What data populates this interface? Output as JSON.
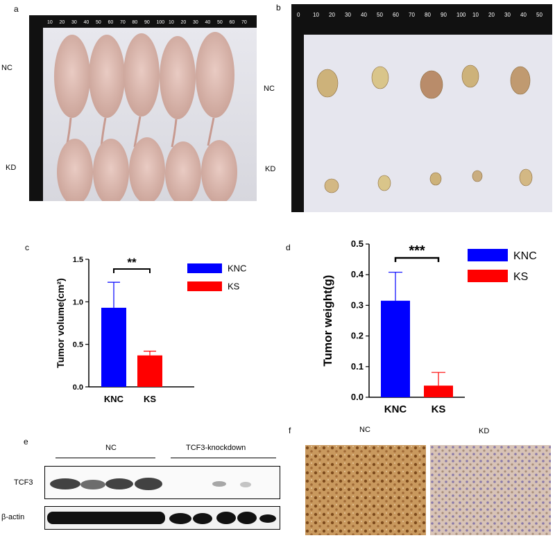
{
  "panels": {
    "a": {
      "letter": "a",
      "row_labels": [
        "NC",
        "KD"
      ]
    },
    "b": {
      "letter": "b",
      "row_labels": [
        "NC",
        "KD"
      ]
    },
    "c": {
      "letter": "c"
    },
    "d": {
      "letter": "d"
    },
    "e": {
      "letter": "e",
      "group_labels": [
        "NC",
        "TCF3-knockdown"
      ],
      "row_labels": [
        "TCF3",
        "β-actin"
      ]
    },
    "f": {
      "letter": "f",
      "col_labels": [
        "NC",
        "KD"
      ]
    }
  },
  "ruler_a": [
    "10",
    "20",
    "30",
    "40",
    "50",
    "60",
    "70",
    "80",
    "90",
    "100",
    "10",
    "20",
    "30",
    "40",
    "50",
    "60",
    "70"
  ],
  "ruler_b": [
    "0",
    "10",
    "20",
    "30",
    "40",
    "50",
    "60",
    "70",
    "80",
    "90",
    "100",
    "10",
    "20",
    "30",
    "40",
    "50"
  ],
  "colors": {
    "knc": "#0000ff",
    "ks": "#ff0000"
  },
  "chart_data": [
    {
      "type": "bar",
      "categories": [
        "KNC",
        "KS"
      ],
      "values": [
        0.93,
        0.37
      ],
      "errors": [
        0.3,
        0.05
      ],
      "ylabel": "Tumor volume(cm²)",
      "ylim": [
        0,
        1.5
      ],
      "yticks": [
        "0.0",
        "0.5",
        "1.0",
        "1.5"
      ],
      "significance": "**",
      "legend": [
        "KNC",
        "KS"
      ],
      "legend_position": "right"
    },
    {
      "type": "bar",
      "categories": [
        "KNC",
        "KS"
      ],
      "values": [
        0.315,
        0.038
      ],
      "errors": [
        0.093,
        0.043
      ],
      "ylabel": "Tumor weight(g)",
      "ylim": [
        0,
        0.5
      ],
      "yticks": [
        "0.0",
        "0.1",
        "0.2",
        "0.3",
        "0.4",
        "0.5"
      ],
      "significance": "***",
      "legend": [
        "KNC",
        "KS"
      ],
      "legend_position": "right"
    }
  ]
}
